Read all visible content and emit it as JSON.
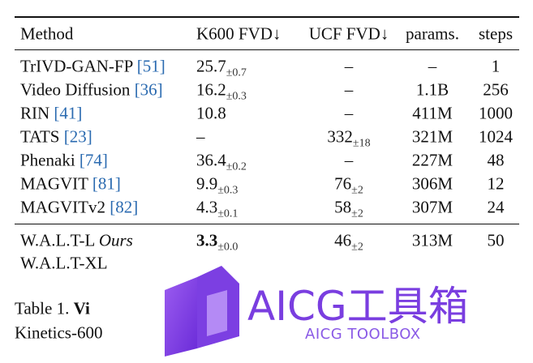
{
  "table": {
    "header": [
      "Method",
      "K600 FVD↓",
      "UCF FVD↓",
      "params.",
      "steps"
    ],
    "rows": [
      [
        {
          "name": "TrIVD-GAN-FP",
          "cite": "[51]"
        },
        {
          "value": "25.7",
          "sub": "±0.7"
        },
        {
          "value": "–"
        },
        {
          "value": "–"
        },
        {
          "value": "1"
        }
      ],
      [
        {
          "name": "Video Diffusion",
          "cite": "[36]"
        },
        {
          "value": "16.2",
          "sub": "±0.3"
        },
        {
          "value": "–"
        },
        {
          "value": "1.1B"
        },
        {
          "value": "256"
        }
      ],
      [
        {
          "name": "RIN",
          "cite": "[41]"
        },
        {
          "value": "10.8"
        },
        {
          "value": "–"
        },
        {
          "value": "411M"
        },
        {
          "value": "1000"
        }
      ],
      [
        {
          "name": "TATS",
          "cite": "[23]"
        },
        {
          "value": "–"
        },
        {
          "value": "332",
          "sub": "±18"
        },
        {
          "value": "321M"
        },
        {
          "value": "1024"
        }
      ],
      [
        {
          "name": "Phenaki",
          "cite": "[74]"
        },
        {
          "value": "36.4",
          "sub": "±0.2"
        },
        {
          "value": "–"
        },
        {
          "value": "227M"
        },
        {
          "value": "48"
        }
      ],
      [
        {
          "name": "MAGVIT",
          "cite": "[81]"
        },
        {
          "value": "9.9",
          "sub": "±0.3"
        },
        {
          "value": "76",
          "sub": "±2"
        },
        {
          "value": "306M"
        },
        {
          "value": "12"
        }
      ],
      [
        {
          "name": "MAGVITv2",
          "cite": "[82]"
        },
        {
          "value": "4.3",
          "sub": "±0.1"
        },
        {
          "value": "58",
          "sub": "±2"
        },
        {
          "value": "307M"
        },
        {
          "value": "24"
        }
      ]
    ],
    "ours": [
      [
        {
          "name": "W.A.L.T-L",
          "tag": "Ours"
        },
        {
          "value": "3.3",
          "sub": "±0.0",
          "bold": true
        },
        {
          "value": "46",
          "sub": "±2"
        },
        {
          "value": "313M"
        },
        {
          "value": "50"
        }
      ],
      [
        {
          "name": "W.A.L.T-XL"
        }
      ]
    ]
  },
  "caption": {
    "label": "Table 1.",
    "bold": "Vi",
    "line2": "Kinetics-600"
  },
  "watermark": {
    "title": "AICG工具箱",
    "subtitle": "AICG TOOLBOX"
  }
}
